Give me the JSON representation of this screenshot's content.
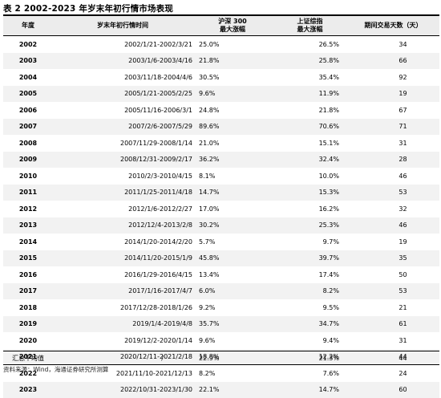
{
  "title": "表 2  2002-2023 年岁末年初行情市场表现",
  "headers": {
    "year": "年度",
    "period": "岁末年初行情时间",
    "hs300_line1": "沪深 300",
    "hs300_line2": "最大涨幅",
    "sh_line1": "上证综指",
    "sh_line2": "最大涨幅",
    "days": "期间交易天数（天）"
  },
  "rows": [
    {
      "year": "2002",
      "period": "2002/1/21-2002/3/21",
      "hs300": "25.0%",
      "sh": "26.5%",
      "days": "34"
    },
    {
      "year": "2003",
      "period": "2003/1/6-2003/4/16",
      "hs300": "21.8%",
      "sh": "25.8%",
      "days": "66"
    },
    {
      "year": "2004",
      "period": "2003/11/18-2004/4/6",
      "hs300": "30.5%",
      "sh": "35.4%",
      "days": "92"
    },
    {
      "year": "2005",
      "period": "2005/1/21-2005/2/25",
      "hs300": "9.6%",
      "sh": "11.9%",
      "days": "19"
    },
    {
      "year": "2006",
      "period": "2005/11/16-2006/3/1",
      "hs300": "24.8%",
      "sh": "21.8%",
      "days": "67"
    },
    {
      "year": "2007",
      "period": "2007/2/6-2007/5/29",
      "hs300": "89.6%",
      "sh": "70.6%",
      "days": "71"
    },
    {
      "year": "2008",
      "period": "2007/11/29-2008/1/14",
      "hs300": "21.0%",
      "sh": "15.1%",
      "days": "31"
    },
    {
      "year": "2009",
      "period": "2008/12/31-2009/2/17",
      "hs300": "36.2%",
      "sh": "32.4%",
      "days": "28"
    },
    {
      "year": "2010",
      "period": "2010/2/3-2010/4/15",
      "hs300": "8.1%",
      "sh": "10.0%",
      "days": "46"
    },
    {
      "year": "2011",
      "period": "2011/1/25-2011/4/18",
      "hs300": "14.7%",
      "sh": "15.3%",
      "days": "53"
    },
    {
      "year": "2012",
      "period": "2012/1/6-2012/2/27",
      "hs300": "17.0%",
      "sh": "16.2%",
      "days": "32"
    },
    {
      "year": "2013",
      "period": "2012/12/4-2013/2/8",
      "hs300": "30.2%",
      "sh": "25.3%",
      "days": "46"
    },
    {
      "year": "2014",
      "period": "2014/1/20-2014/2/20",
      "hs300": "5.7%",
      "sh": "9.7%",
      "days": "19"
    },
    {
      "year": "2015",
      "period": "2014/11/20-2015/1/9",
      "hs300": "45.8%",
      "sh": "39.7%",
      "days": "35"
    },
    {
      "year": "2016",
      "period": "2016/1/29-2016/4/15",
      "hs300": "13.4%",
      "sh": "17.4%",
      "days": "50"
    },
    {
      "year": "2017",
      "period": "2017/1/16-2017/4/7",
      "hs300": "6.0%",
      "sh": "8.2%",
      "days": "53"
    },
    {
      "year": "2018",
      "period": "2017/12/28-2018/1/26",
      "hs300": "9.2%",
      "sh": "9.5%",
      "days": "21"
    },
    {
      "year": "2019",
      "period": "2019/1/4-2019/4/8",
      "hs300": "35.7%",
      "sh": "34.7%",
      "days": "61"
    },
    {
      "year": "2020",
      "period": "2019/12/2-2020/1/14",
      "hs300": "9.6%",
      "sh": "9.4%",
      "days": "31"
    },
    {
      "year": "2021",
      "period": "2020/12/11-2021/2/18",
      "hs300": "18.8%",
      "sh": "12.2%",
      "days": "44"
    },
    {
      "year": "2022",
      "period": "2021/11/10-2021/12/13",
      "hs300": "8.2%",
      "sh": "7.6%",
      "days": "24"
    },
    {
      "year": "2023",
      "period": "2022/10/31-2023/1/30",
      "hs300": "22.1%",
      "sh": "14.7%",
      "days": "60"
    }
  ],
  "summary": {
    "label": "汇总平均值",
    "period": "/",
    "hs300": "22.9%",
    "sh": "21.3%",
    "days": "44"
  },
  "source": "资料来源：Wind，海通证券研究所测算"
}
